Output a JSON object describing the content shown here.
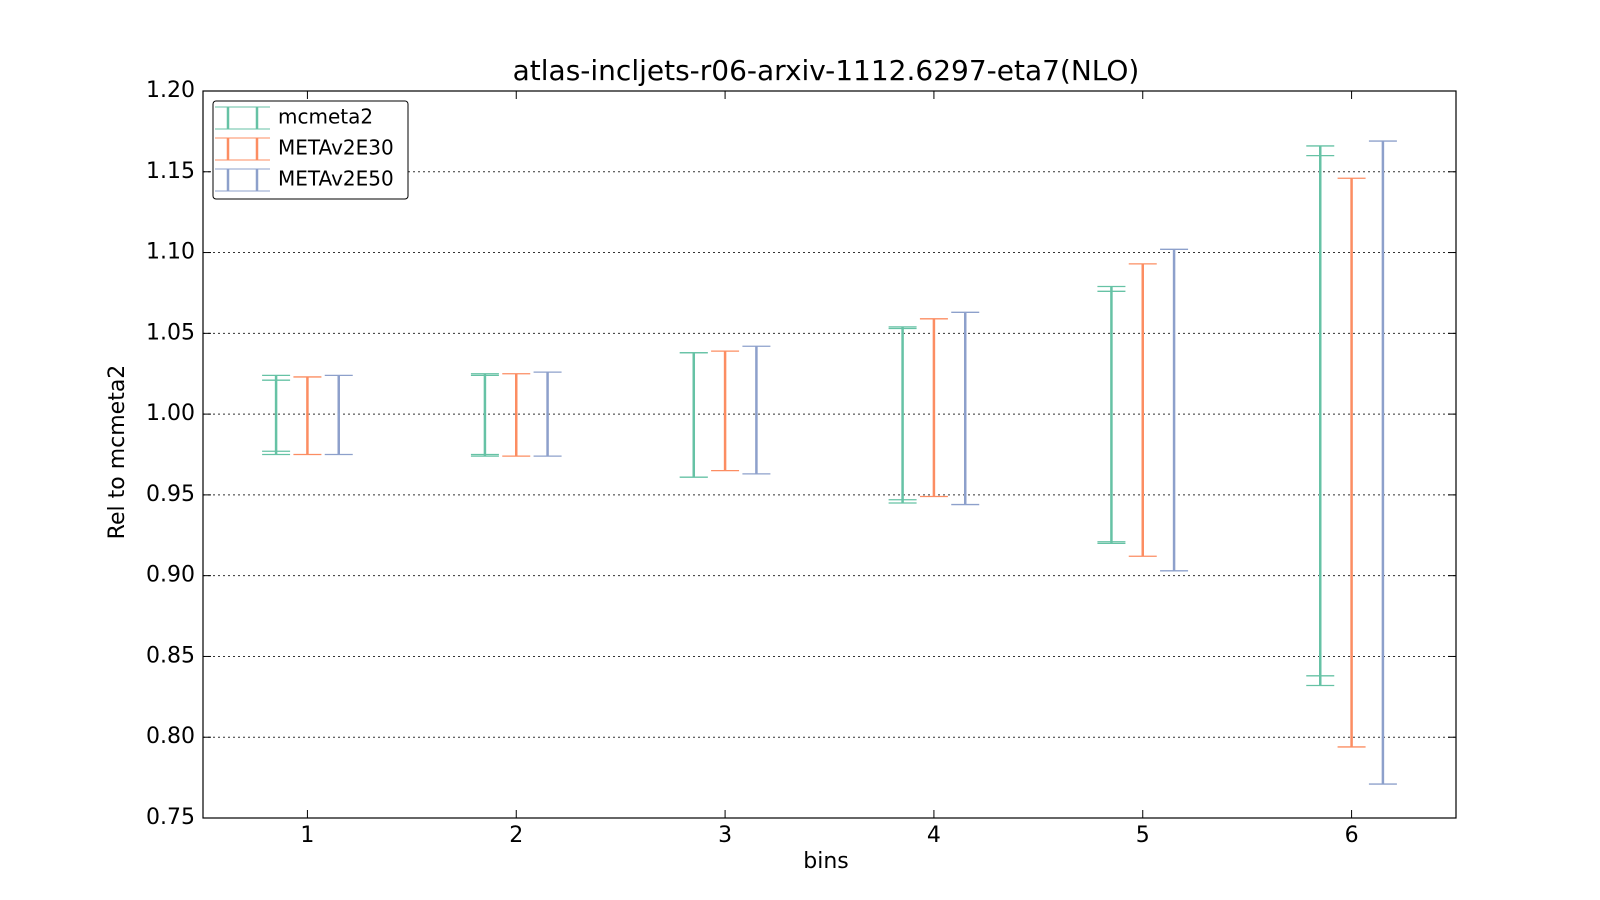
{
  "chart_data": {
    "type": "errorbar",
    "title": "atlas-incljets-r06-arxiv-1112.6297-eta7(NLO)",
    "xlabel": "bins",
    "ylabel": "Rel to mcmeta2",
    "x": [
      1,
      2,
      3,
      4,
      5,
      6
    ],
    "xlim": [
      0.5,
      6.5
    ],
    "xticks": [
      1,
      2,
      3,
      4,
      5,
      6
    ],
    "ylim": [
      0.75,
      1.2
    ],
    "yticks": [
      {
        "value": 0.75,
        "label": "0.75"
      },
      {
        "value": 0.8,
        "label": "0.80"
      },
      {
        "value": 0.85,
        "label": "0.85"
      },
      {
        "value": 0.9,
        "label": "0.90"
      },
      {
        "value": 0.95,
        "label": "0.95"
      },
      {
        "value": 1.0,
        "label": "1.00"
      },
      {
        "value": 1.05,
        "label": "1.05"
      },
      {
        "value": 1.1,
        "label": "1.10"
      },
      {
        "value": 1.15,
        "label": "1.15"
      },
      {
        "value": 1.2,
        "label": "1.20"
      }
    ],
    "grid": true,
    "legend": "upper left",
    "series": [
      {
        "name": "mcmeta2",
        "color": "#66c2a5",
        "low": [
          0.975,
          0.974,
          0.961,
          0.945,
          0.92,
          0.832
        ],
        "high": [
          1.024,
          1.025,
          1.038,
          1.054,
          1.079,
          1.166
        ],
        "inner_low": [
          0.977,
          0.975,
          0.961,
          0.947,
          0.921,
          0.838
        ],
        "inner_high": [
          1.021,
          1.024,
          1.038,
          1.053,
          1.076,
          1.16
        ]
      },
      {
        "name": "METAv2E30",
        "color": "#fc8d62",
        "low": [
          0.975,
          0.974,
          0.965,
          0.949,
          0.912,
          0.794
        ],
        "high": [
          1.023,
          1.025,
          1.039,
          1.059,
          1.093,
          1.146
        ]
      },
      {
        "name": "METAv2E50",
        "color": "#8da0cb",
        "low": [
          0.975,
          0.974,
          0.963,
          0.944,
          0.903,
          0.771
        ],
        "high": [
          1.024,
          1.026,
          1.042,
          1.063,
          1.102,
          1.169
        ]
      }
    ]
  }
}
